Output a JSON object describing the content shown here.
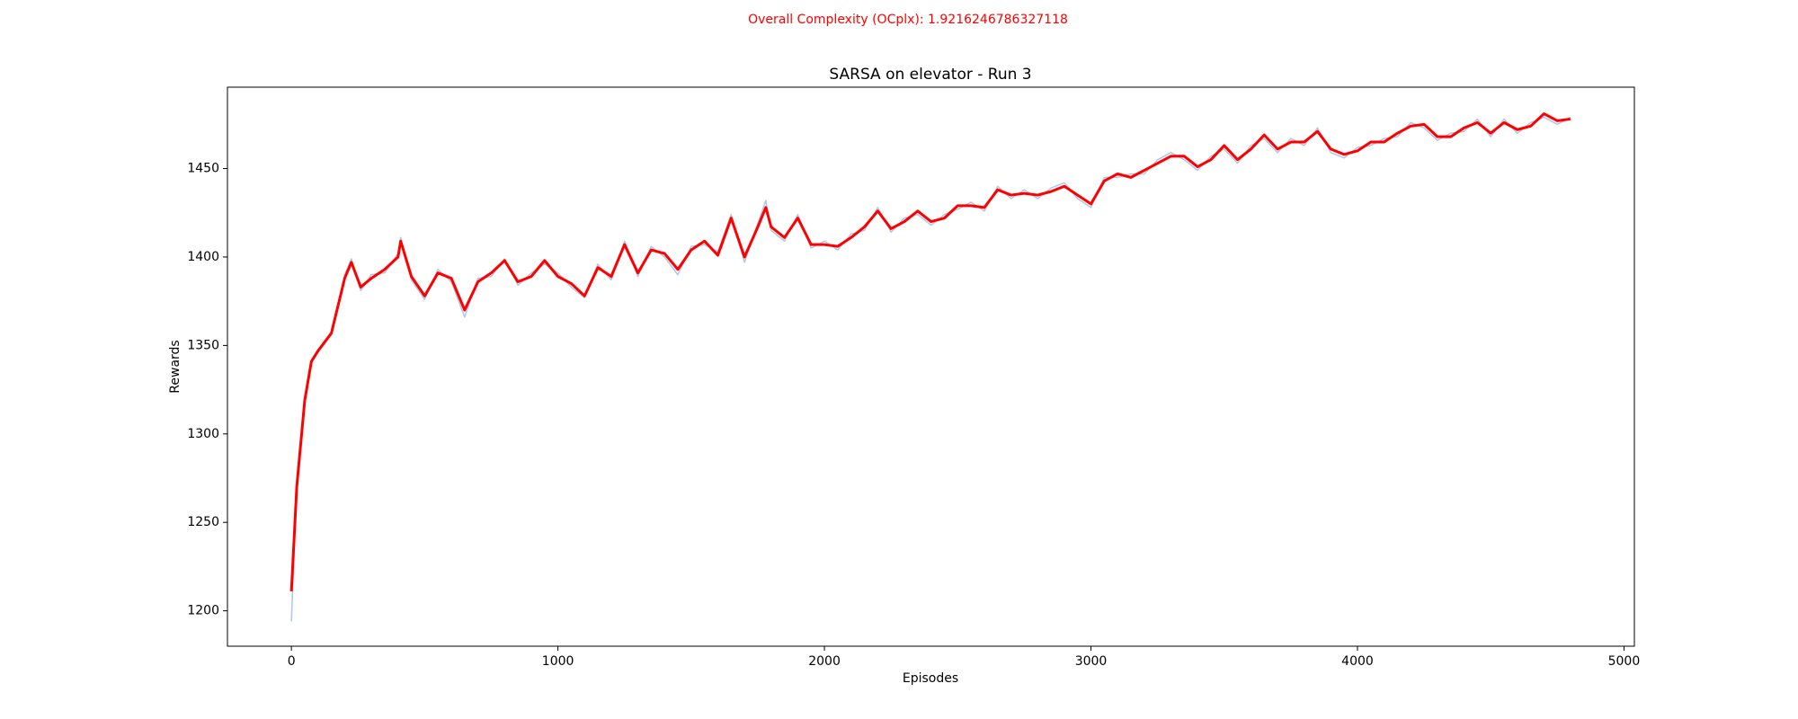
{
  "chart_data": {
    "type": "line",
    "suptitle": "Overall Complexity (OCplx): 1.9216246786327118",
    "title": "SARSA on elevator - Run 3",
    "xlabel": "Episodes",
    "ylabel": "Rewards",
    "x": [
      0,
      20,
      50,
      75,
      100,
      150,
      200,
      225,
      260,
      300,
      350,
      400,
      410,
      450,
      500,
      550,
      600,
      650,
      700,
      750,
      800,
      850,
      900,
      950,
      1000,
      1050,
      1100,
      1150,
      1200,
      1250,
      1300,
      1350,
      1400,
      1450,
      1500,
      1550,
      1600,
      1650,
      1700,
      1750,
      1780,
      1800,
      1850,
      1900,
      1950,
      2000,
      2050,
      2100,
      2150,
      2200,
      2250,
      2300,
      2350,
      2400,
      2450,
      2500,
      2550,
      2600,
      2650,
      2700,
      2750,
      2800,
      2850,
      2900,
      2950,
      3000,
      3050,
      3100,
      3150,
      3200,
      3250,
      3300,
      3350,
      3400,
      3450,
      3500,
      3550,
      3600,
      3650,
      3700,
      3750,
      3800,
      3850,
      3900,
      3950,
      4000,
      4050,
      4100,
      4150,
      4200,
      4250,
      4300,
      4350,
      4400,
      4450,
      4500,
      4550,
      4600,
      4650,
      4700,
      4750,
      4799
    ],
    "series": [
      {
        "color": "#aec7e8",
        "values": [
          1194,
          1272,
          1320,
          1340,
          1346,
          1356,
          1390,
          1399,
          1381,
          1390,
          1391,
          1402,
          1411,
          1387,
          1376,
          1393,
          1386,
          1366,
          1388,
          1389,
          1399,
          1384,
          1391,
          1396,
          1391,
          1383,
          1377,
          1396,
          1387,
          1409,
          1389,
          1406,
          1400,
          1390,
          1406,
          1407,
          1403,
          1424,
          1397,
          1419,
          1432,
          1415,
          1409,
          1424,
          1405,
          1409,
          1404,
          1413,
          1415,
          1428,
          1414,
          1422,
          1424,
          1418,
          1424,
          1427,
          1431,
          1426,
          1440,
          1433,
          1438,
          1433,
          1439,
          1442,
          1433,
          1428,
          1445,
          1445,
          1447,
          1447,
          1455,
          1459,
          1455,
          1449,
          1457,
          1461,
          1453,
          1463,
          1467,
          1459,
          1467,
          1463,
          1473,
          1459,
          1456,
          1462,
          1463,
          1467,
          1468,
          1476,
          1473,
          1466,
          1470,
          1471,
          1478,
          1468,
          1478,
          1470,
          1476,
          1479,
          1475,
          1479
        ]
      },
      {
        "color": "#ff0000",
        "values": [
          1211,
          1270,
          1319,
          1341,
          1347,
          1357,
          1388,
          1397,
          1383,
          1388,
          1393,
          1400,
          1409,
          1389,
          1378,
          1391,
          1388,
          1370,
          1386,
          1391,
          1398,
          1386,
          1389,
          1398,
          1389,
          1385,
          1378,
          1394,
          1389,
          1407,
          1391,
          1404,
          1402,
          1393,
          1404,
          1409,
          1401,
          1422,
          1400,
          1417,
          1428,
          1417,
          1411,
          1422,
          1407,
          1407,
          1406,
          1411,
          1417,
          1426,
          1416,
          1420,
          1426,
          1420,
          1422,
          1429,
          1429,
          1428,
          1438,
          1435,
          1436,
          1435,
          1437,
          1440,
          1435,
          1430,
          1443,
          1447,
          1445,
          1449,
          1453,
          1457,
          1457,
          1451,
          1455,
          1463,
          1455,
          1461,
          1469,
          1461,
          1465,
          1465,
          1471,
          1461,
          1458,
          1460,
          1465,
          1465,
          1470,
          1474,
          1475,
          1468,
          1468,
          1473,
          1476,
          1470,
          1476,
          1472,
          1474,
          1481,
          1477,
          1478
        ]
      }
    ],
    "xlim": [
      -240,
      5039
    ],
    "ylim": [
      1180,
      1496
    ],
    "xticks": [
      0,
      1000,
      2000,
      3000,
      4000,
      5000
    ],
    "yticks": [
      1200,
      1250,
      1300,
      1350,
      1400,
      1450
    ],
    "grid": false
  }
}
